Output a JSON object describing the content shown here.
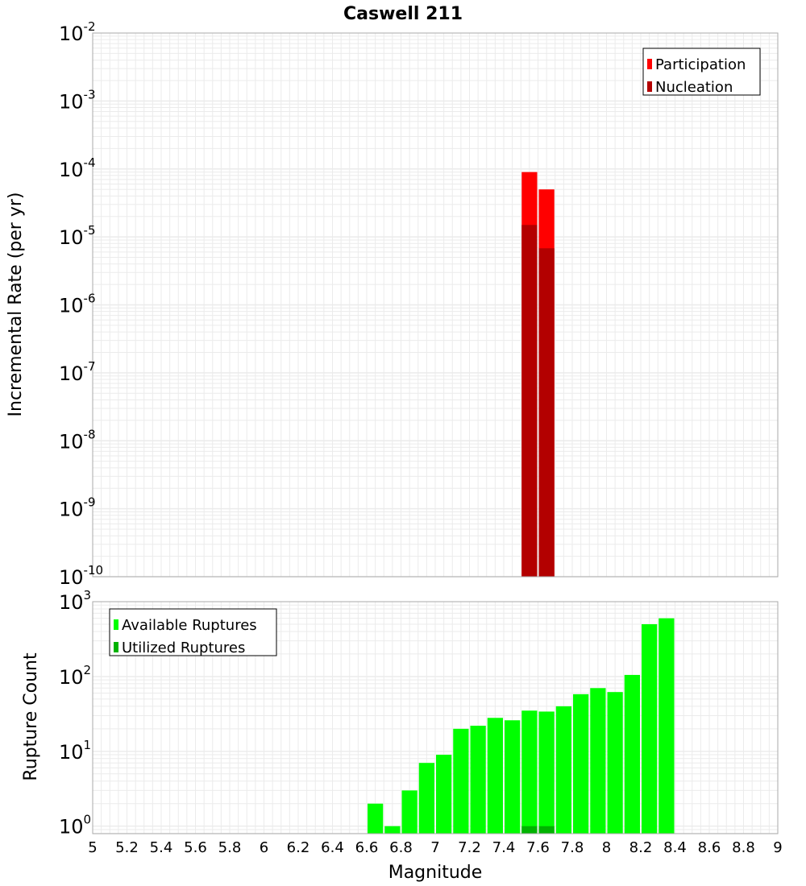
{
  "chart_data": [
    {
      "type": "bar",
      "title": "Caswell 211",
      "xlabel": "",
      "ylabel": "Incremental Rate (per yr)",
      "yscale": "log",
      "ylim_exponents": [
        -10,
        -2
      ],
      "xlim": [
        5,
        9
      ],
      "bin_width": 0.1,
      "grid": true,
      "legend_position": "top-right",
      "series": [
        {
          "name": "Participation",
          "color": "#ff0000",
          "x": [
            7.55,
            7.65
          ],
          "values": [
            9e-05,
            5e-05
          ]
        },
        {
          "name": "Nucleation",
          "color": "#b30000",
          "x": [
            7.55,
            7.65
          ],
          "values": [
            1.5e-05,
            6.8e-06
          ]
        }
      ]
    },
    {
      "type": "bar",
      "title": "",
      "xlabel": "Magnitude",
      "ylabel": "Rupture Count",
      "yscale": "log",
      "ylim_exponents": [
        -0.1,
        3
      ],
      "xlim": [
        5,
        9
      ],
      "bin_width": 0.1,
      "grid": true,
      "legend_position": "top-left",
      "series": [
        {
          "name": "Available Ruptures",
          "color": "#00ff00",
          "x": [
            6.65,
            6.75,
            6.85,
            6.95,
            7.05,
            7.15,
            7.25,
            7.35,
            7.45,
            7.55,
            7.65,
            7.75,
            7.85,
            7.95,
            8.05,
            8.15,
            8.25,
            8.35
          ],
          "values": [
            2,
            1,
            3,
            7,
            9,
            20,
            22,
            28,
            26,
            35,
            34,
            40,
            58,
            70,
            62,
            105,
            500,
            600
          ]
        },
        {
          "name": "Utilized Ruptures",
          "color": "#00b300",
          "x": [
            7.55,
            7.65
          ],
          "values": [
            1,
            1
          ]
        }
      ]
    }
  ],
  "x_tick_labels": [
    "5",
    "5.2",
    "5.4",
    "5.6",
    "5.8",
    "6",
    "6.2",
    "6.4",
    "6.6",
    "6.8",
    "7",
    "7.2",
    "7.4",
    "7.6",
    "7.8",
    "8",
    "8.2",
    "8.4",
    "8.6",
    "8.8",
    "9"
  ],
  "top_y_ticks": [
    {
      "base": "10",
      "exp": "-2"
    },
    {
      "base": "10",
      "exp": "-3"
    },
    {
      "base": "10",
      "exp": "-4"
    },
    {
      "base": "10",
      "exp": "-5"
    },
    {
      "base": "10",
      "exp": "-6"
    },
    {
      "base": "10",
      "exp": "-7"
    },
    {
      "base": "10",
      "exp": "-8"
    },
    {
      "base": "10",
      "exp": "-9"
    },
    {
      "base": "10",
      "exp": "-10"
    }
  ],
  "bottom_y_ticks": [
    {
      "base": "10",
      "exp": "3"
    },
    {
      "base": "10",
      "exp": "2"
    },
    {
      "base": "10",
      "exp": "1"
    },
    {
      "base": "10",
      "exp": "0"
    }
  ],
  "colors": {
    "grid": "#ebebeb",
    "frame": "#aaaaaa",
    "bar_gap": "#ffffff"
  }
}
